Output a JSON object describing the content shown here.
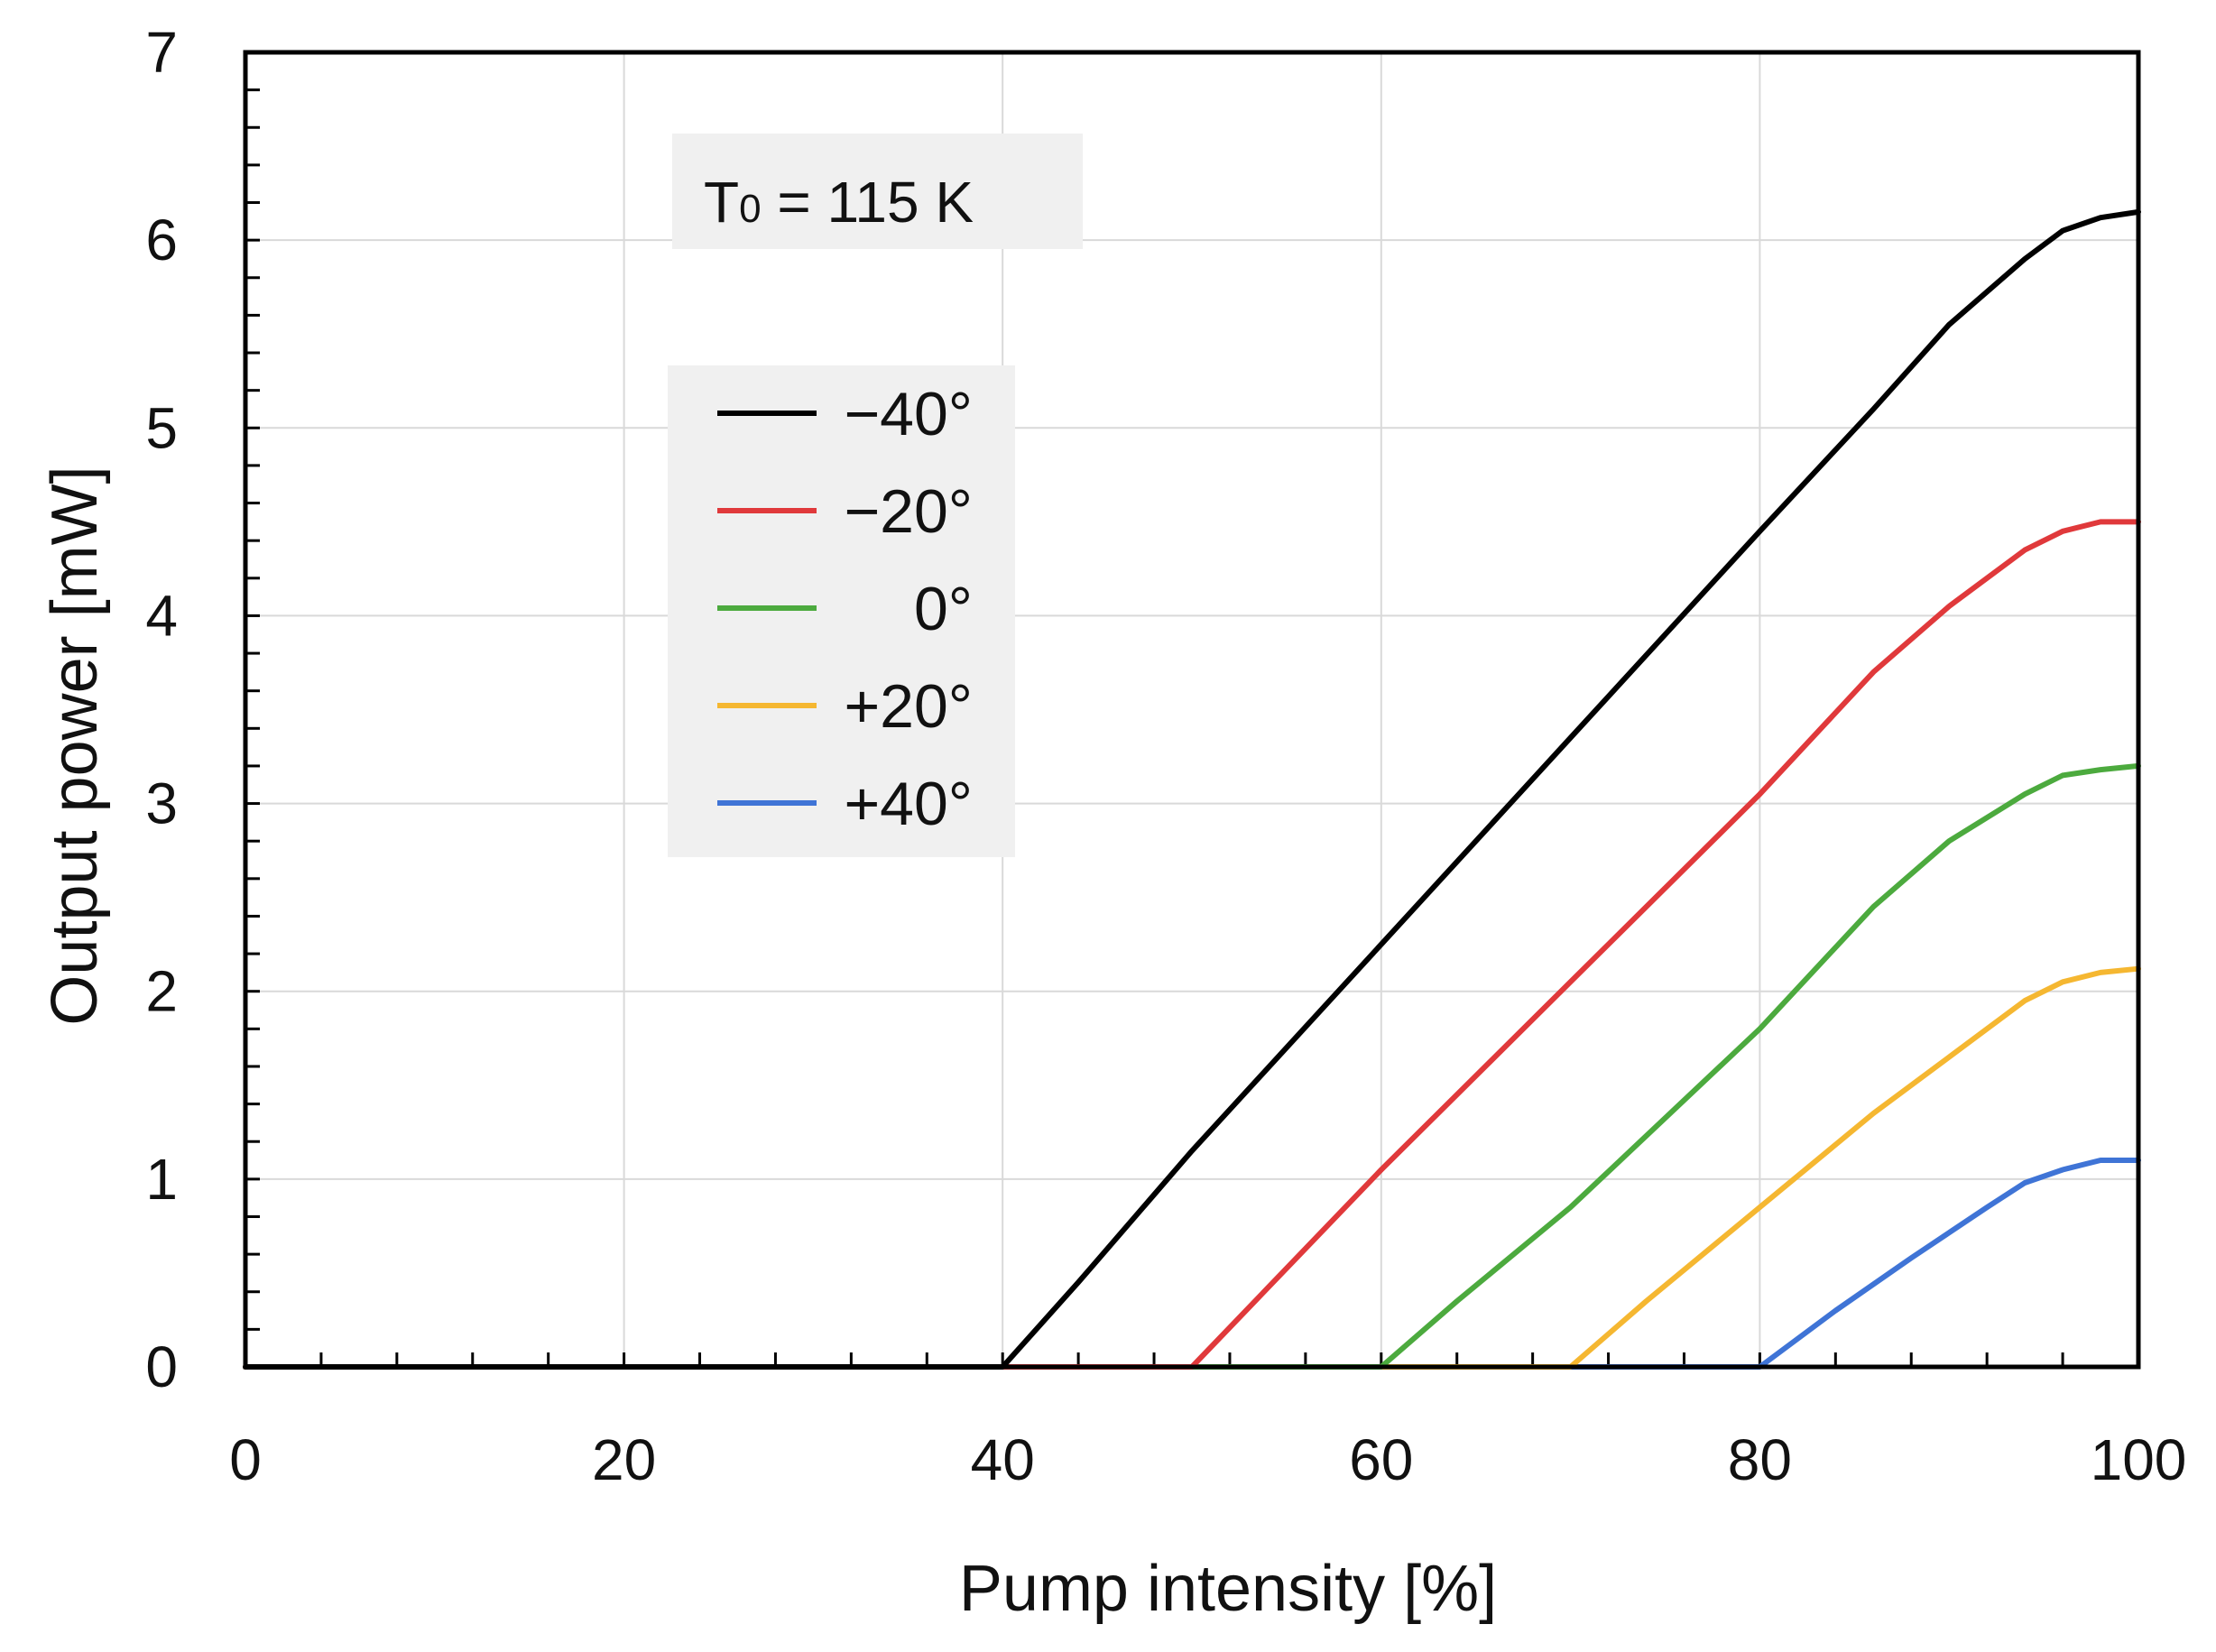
{
  "chart_data": {
    "type": "line",
    "title": "",
    "xlabel": "Pump intensity [%]",
    "ylabel": "Output power [mW]",
    "xlim": [
      0,
      100
    ],
    "ylim": [
      0,
      7
    ],
    "x_ticks": [
      0,
      20,
      40,
      60,
      80,
      100
    ],
    "x_tick_labels": [
      "0",
      "20",
      "40",
      "60",
      "80",
      "100"
    ],
    "y_ticks": [
      0,
      1,
      2,
      3,
      4,
      5,
      6,
      7
    ],
    "y_tick_labels": [
      "0",
      "1",
      "2",
      "3",
      "4",
      "5",
      "6",
      "7"
    ],
    "grid": true,
    "legend_position": "upper-left",
    "annotation": {
      "prefix": "T",
      "subscript": "0",
      "suffix": " = 115 K"
    },
    "series": [
      {
        "name": "−40°",
        "color": "#000000",
        "x": [
          0,
          40,
          44,
          50,
          60,
          70,
          80,
          86,
          90,
          94,
          96,
          98,
          100
        ],
        "y": [
          0,
          0,
          0.45,
          1.15,
          2.25,
          3.35,
          4.45,
          5.1,
          5.55,
          5.9,
          6.05,
          6.12,
          6.15
        ]
      },
      {
        "name": "−20°",
        "color": "#e0393b",
        "x": [
          0,
          50,
          54,
          60,
          70,
          80,
          86,
          90,
          94,
          96,
          98,
          100
        ],
        "y": [
          0,
          0,
          0.42,
          1.05,
          2.05,
          3.05,
          3.7,
          4.05,
          4.35,
          4.45,
          4.5,
          4.5
        ]
      },
      {
        "name": "0°",
        "color": "#4caa3e",
        "x": [
          0,
          60,
          64,
          70,
          80,
          86,
          90,
          94,
          96,
          98,
          100
        ],
        "y": [
          0,
          0,
          0.35,
          0.85,
          1.8,
          2.45,
          2.8,
          3.05,
          3.15,
          3.18,
          3.2
        ]
      },
      {
        "name": "+20°",
        "color": "#f5b731",
        "x": [
          0,
          70,
          74,
          80,
          86,
          90,
          94,
          96,
          98,
          100
        ],
        "y": [
          0,
          0,
          0.35,
          0.85,
          1.35,
          1.65,
          1.95,
          2.05,
          2.1,
          2.12
        ]
      },
      {
        "name": "+40°",
        "color": "#3f74d6",
        "x": [
          0,
          80,
          84,
          88,
          92,
          94,
          96,
          98,
          100
        ],
        "y": [
          0,
          0,
          0.3,
          0.58,
          0.85,
          0.98,
          1.05,
          1.1,
          1.1
        ]
      }
    ]
  }
}
